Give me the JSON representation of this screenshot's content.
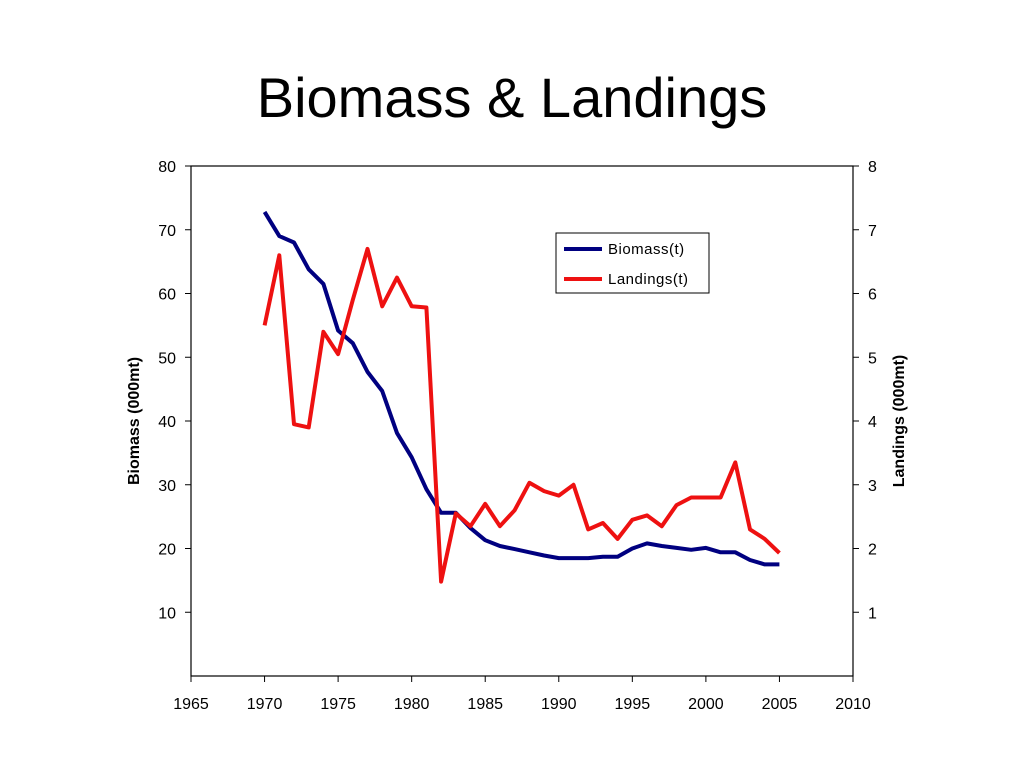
{
  "slide": {
    "title": "Biomass & Landings"
  },
  "chart_data": {
    "type": "line",
    "title": "Biomass & Landings",
    "xlabel": "",
    "ylabel": "Biomass (000mt)",
    "y2label": "Landings (000mt)",
    "xlim": [
      1965,
      2010
    ],
    "ylim": [
      0,
      80
    ],
    "y2lim": [
      0,
      8
    ],
    "xticks": [
      1965,
      1970,
      1975,
      1980,
      1985,
      1990,
      1995,
      2000,
      2005,
      2010
    ],
    "yticks": [
      10,
      20,
      30,
      40,
      50,
      60,
      70,
      80
    ],
    "y2ticks": [
      1,
      2,
      3,
      4,
      5,
      6,
      7,
      8
    ],
    "grid": false,
    "legend_position": "top-right",
    "series": [
      {
        "name": "Biomass(t)",
        "axis": "left",
        "color": "#000080",
        "x": [
          1970,
          1971,
          1972,
          1973,
          1974,
          1975,
          1976,
          1977,
          1978,
          1979,
          1980,
          1981,
          1982,
          1983,
          1984,
          1985,
          1986,
          1987,
          1988,
          1989,
          1990,
          1991,
          1992,
          1993,
          1994,
          1995,
          1996,
          1997,
          1998,
          1999,
          2000,
          2001,
          2002,
          2003,
          2004,
          2005
        ],
        "values": [
          72.8,
          69.0,
          68.0,
          63.8,
          61.5,
          54.2,
          52.2,
          47.7,
          44.7,
          38.1,
          34.3,
          29.3,
          25.6,
          25.6,
          23.2,
          21.3,
          20.4,
          19.9,
          19.4,
          18.9,
          18.5,
          18.5,
          18.5,
          18.7,
          18.7,
          20.0,
          20.8,
          20.4,
          20.1,
          19.8,
          20.1,
          19.4,
          19.4,
          18.2,
          17.5,
          17.5
        ]
      },
      {
        "name": "Landings(t)",
        "axis": "right",
        "color": "#ee1111",
        "x": [
          1970,
          1971,
          1972,
          1973,
          1974,
          1975,
          1976,
          1977,
          1978,
          1979,
          1980,
          1981,
          1982,
          1983,
          1984,
          1985,
          1986,
          1987,
          1988,
          1989,
          1990,
          1991,
          1992,
          1993,
          1994,
          1995,
          1996,
          1997,
          1998,
          1999,
          2000,
          2001,
          2002,
          2003,
          2004,
          2005
        ],
        "values": [
          5.5,
          6.6,
          3.95,
          3.9,
          5.4,
          5.05,
          5.9,
          6.7,
          5.8,
          6.25,
          5.8,
          5.78,
          1.48,
          2.55,
          2.35,
          2.7,
          2.35,
          2.6,
          3.03,
          2.9,
          2.83,
          3.0,
          2.3,
          2.4,
          2.15,
          2.45,
          2.52,
          2.35,
          2.68,
          2.8,
          2.8,
          2.8,
          3.35,
          2.3,
          2.15,
          1.93
        ]
      }
    ]
  }
}
